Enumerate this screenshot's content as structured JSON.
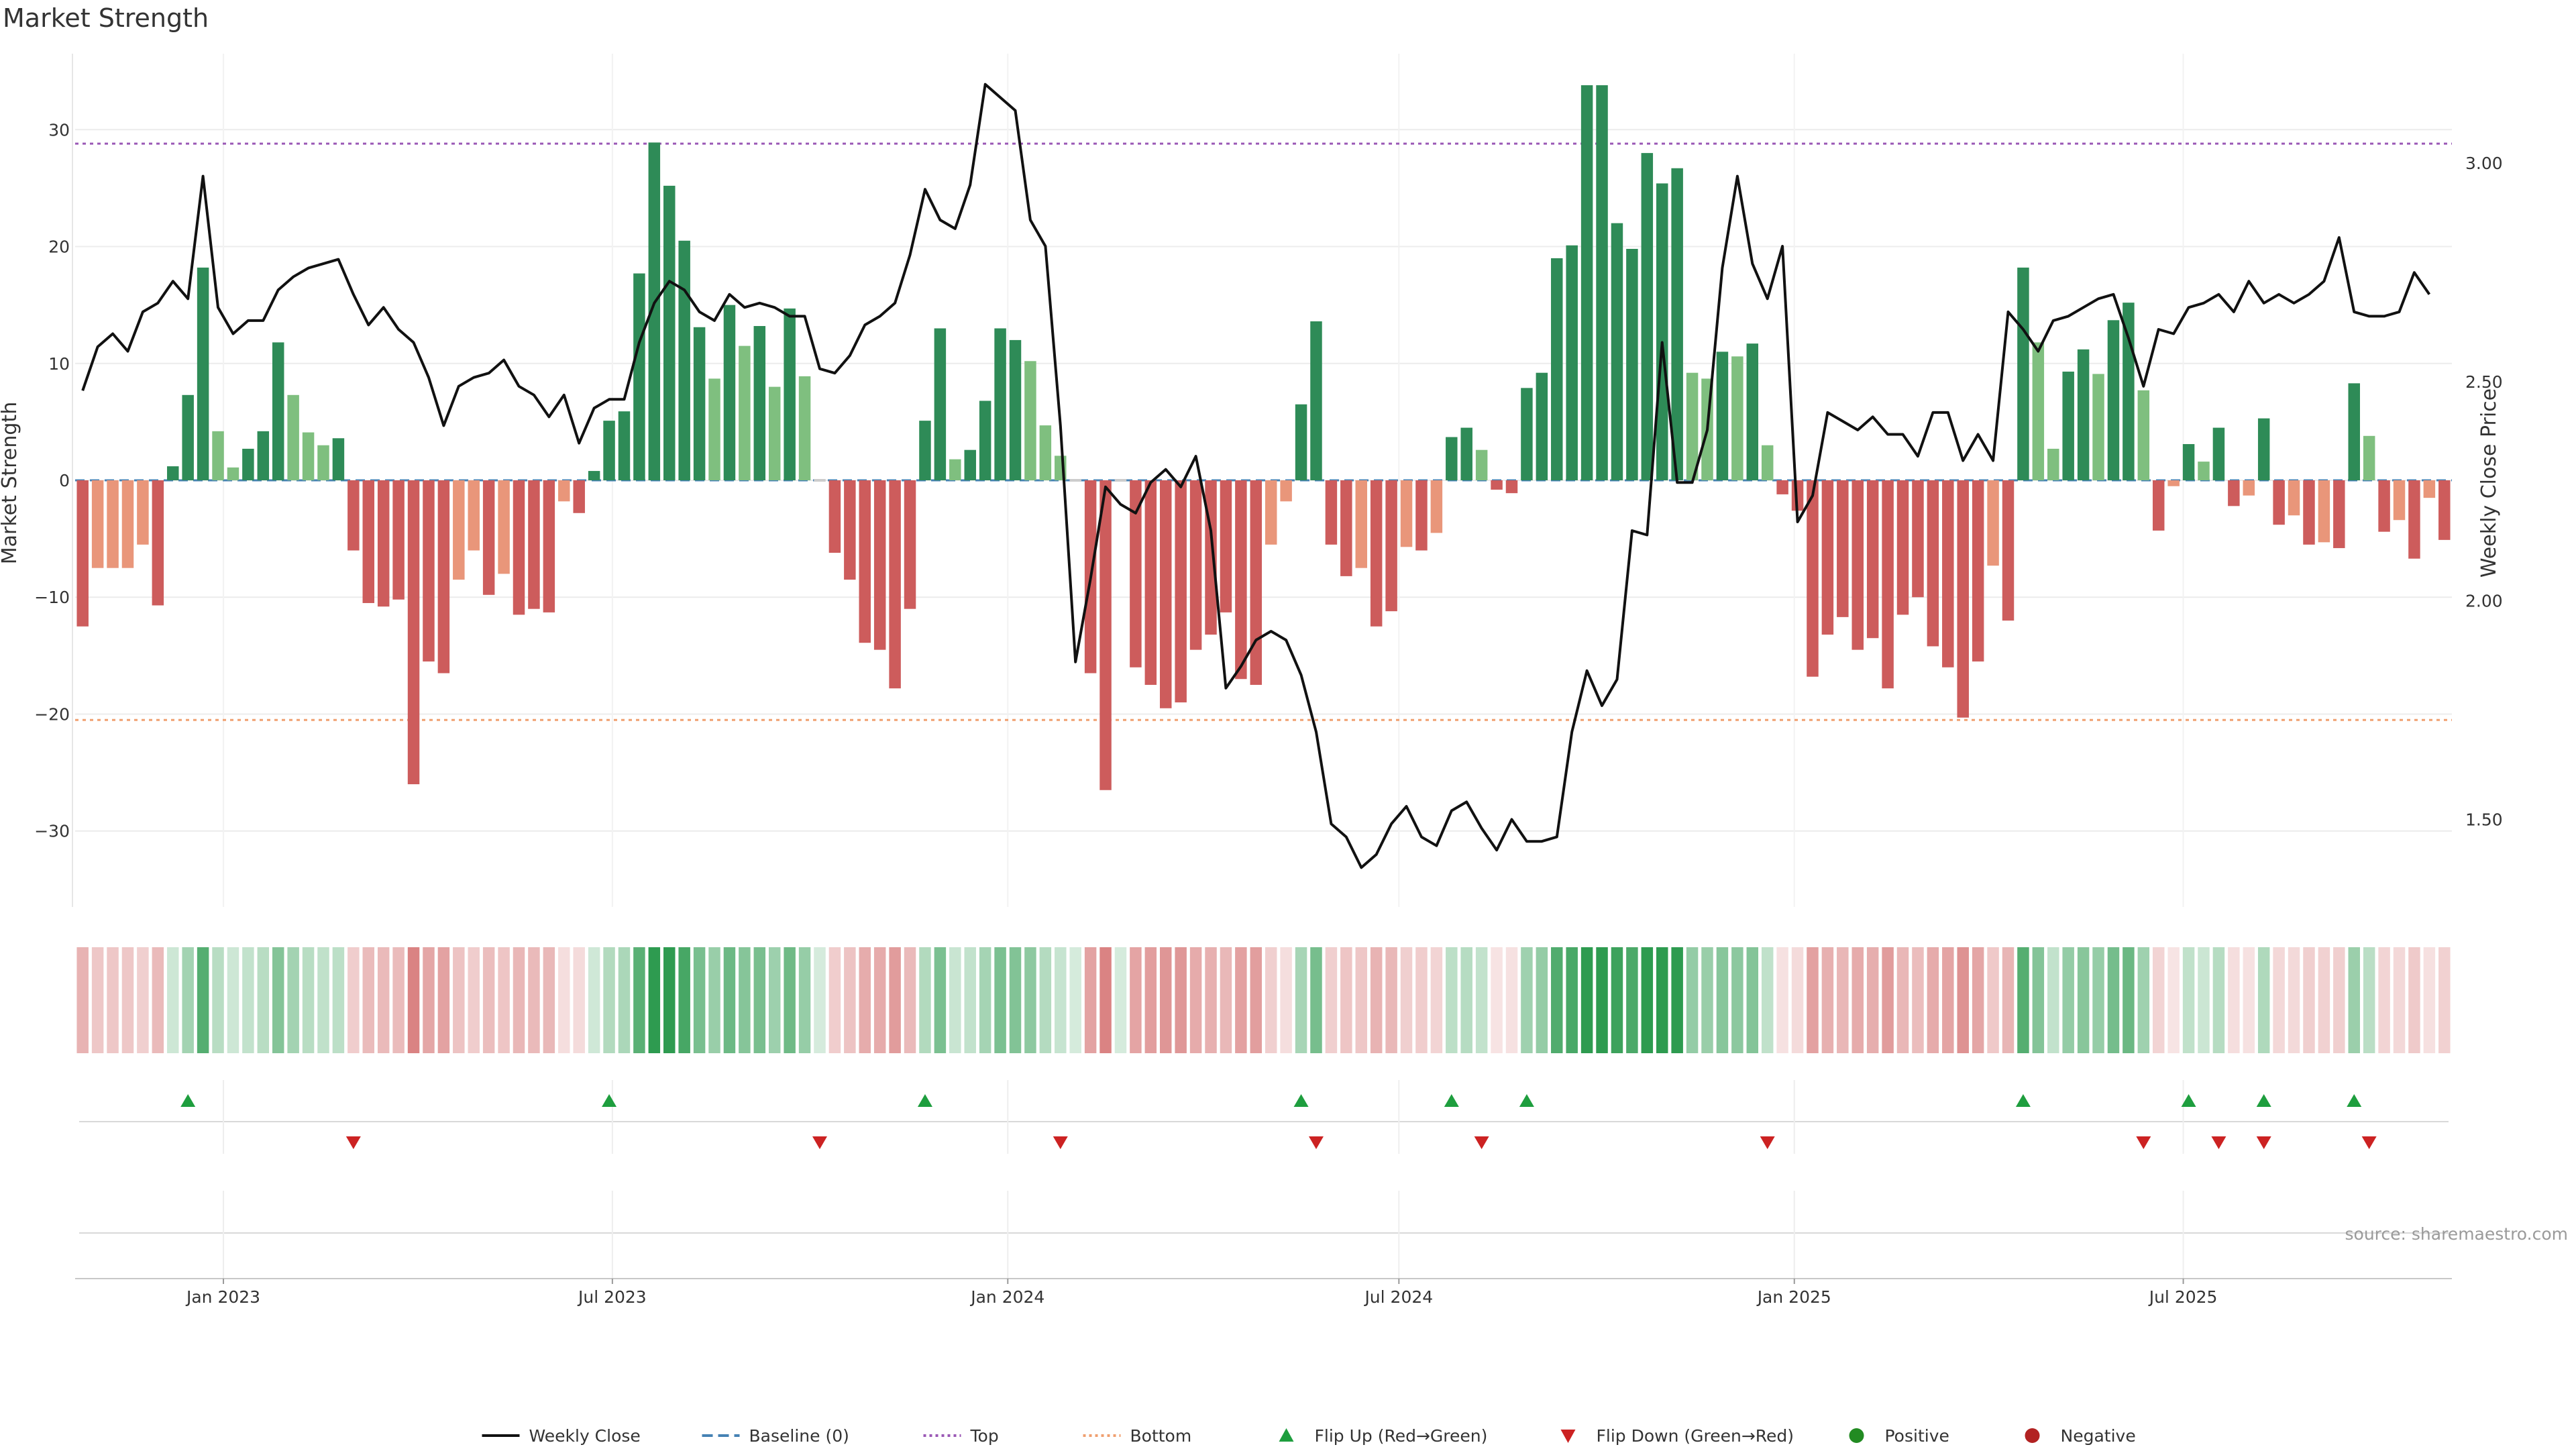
{
  "chart_data": {
    "type": "bar",
    "title": "Market Strength",
    "ylabel": "Market Strength",
    "y2label": "Weekly Close Price",
    "ylim": [
      -36.5,
      36.5
    ],
    "y2lim": [
      1.3,
      3.25
    ],
    "yticks": [
      30,
      20,
      10,
      0,
      -10,
      -20,
      -30
    ],
    "y2ticks": [
      "3.00",
      "2.50",
      "2.00",
      "1.50"
    ],
    "top_line": 28.8,
    "bottom_line": -20.5,
    "x_start": "2022-10-24",
    "x_ticks": [
      {
        "label": "Jan 2023",
        "date": "2023-01-01"
      },
      {
        "label": "Jul 2023",
        "date": "2023-07-01"
      },
      {
        "label": "Jan 2024",
        "date": "2024-01-01"
      },
      {
        "label": "Jul 2024",
        "date": "2024-07-01"
      },
      {
        "label": "Jan 2025",
        "date": "2025-01-01"
      },
      {
        "label": "Jul 2025",
        "date": "2025-07-01"
      }
    ],
    "strength": [
      -12.5,
      -7.5,
      -7.5,
      -7.5,
      -5.5,
      -10.7,
      1.2,
      7.3,
      18.2,
      4.2,
      1.1,
      2.7,
      4.2,
      11.8,
      7.3,
      4.1,
      3.0,
      3.6,
      -6,
      -10.5,
      -10.8,
      -10.2,
      -26,
      -15.5,
      -16.5,
      -8.5,
      -6,
      -9.8,
      -8,
      -11.5,
      -11,
      -11.3,
      -1.8,
      -2.8,
      0.8,
      5.1,
      5.9,
      17.7,
      28.9,
      25.2,
      20.5,
      13.1,
      8.7,
      15.0,
      11.5,
      13.2,
      8.0,
      14.7,
      8.9,
      0,
      -6.2,
      -8.5,
      -13.9,
      -14.5,
      -17.8,
      -11,
      5.1,
      13.0,
      1.8,
      2.6,
      6.8,
      13.0,
      12.0,
      10.2,
      4.7,
      2.1,
      0,
      -16.5,
      -26.5,
      0,
      -16,
      -17.5,
      -19.5,
      -19,
      -14.5,
      -13.2,
      -11.3,
      -17,
      -17.5,
      -5.5,
      -1.8,
      6.5,
      13.6,
      -5.5,
      -8.2,
      -7.5,
      -12.5,
      -11.2,
      -5.7,
      -6.0,
      -4.5,
      3.7,
      4.5,
      2.6,
      -0.8,
      -1.1,
      7.9,
      9.2,
      19.0,
      20.1,
      33.8,
      33.8,
      22.0,
      19.8,
      28.0,
      25.4,
      26.7,
      9.2,
      8.7,
      11.0,
      10.6,
      11.7,
      3.0,
      -1.2,
      -2.6,
      -16.8,
      -13.2,
      -11.7,
      -14.5,
      -13.5,
      -17.8,
      -11.5,
      -10,
      -14.2,
      -16,
      -20.3,
      -15.5,
      -7.3,
      -12,
      18.2,
      11.8,
      2.7,
      9.3,
      11.2,
      9.1,
      13.7,
      15.2,
      7.7,
      -4.3,
      -0.5,
      3.1,
      1.6,
      4.5,
      -2.2,
      -1.3,
      5.3,
      -3.8,
      -3.0,
      -5.5,
      -5.3,
      -5.8,
      8.3,
      3.8,
      -4.4,
      -3.4,
      -6.7,
      -1.5,
      -5.1
    ],
    "weekly_close": [
      2.48,
      2.58,
      2.61,
      2.57,
      2.66,
      2.68,
      2.73,
      2.69,
      2.97,
      2.67,
      2.61,
      2.64,
      2.64,
      2.71,
      2.74,
      2.76,
      2.77,
      2.78,
      2.7,
      2.63,
      2.67,
      2.62,
      2.59,
      2.51,
      2.4,
      2.49,
      2.51,
      2.52,
      2.55,
      2.49,
      2.47,
      2.42,
      2.47,
      2.36,
      2.44,
      2.46,
      2.46,
      2.59,
      2.68,
      2.73,
      2.71,
      2.66,
      2.64,
      2.7,
      2.67,
      2.68,
      2.67,
      2.65,
      2.65,
      2.53,
      2.52,
      2.56,
      2.63,
      2.65,
      2.68,
      2.79,
      2.94,
      2.87,
      2.85,
      2.95,
      3.18,
      3.15,
      3.12,
      2.87,
      2.81,
      2.4,
      1.86,
      2.05,
      2.26,
      2.22,
      2.2,
      2.27,
      2.3,
      2.26,
      2.33,
      2.16,
      1.8,
      1.85,
      1.91,
      1.93,
      1.91,
      1.83,
      1.7,
      1.49,
      1.46,
      1.39,
      1.42,
      1.49,
      1.53,
      1.46,
      1.44,
      1.52,
      1.54,
      1.48,
      1.43,
      1.5,
      1.45,
      1.45,
      1.46,
      1.7,
      1.84,
      1.76,
      1.82,
      2.16,
      2.15,
      2.59,
      2.27,
      2.27,
      2.39,
      2.76,
      2.97,
      2.77,
      2.69,
      2.81,
      2.18,
      2.24,
      2.43,
      2.41,
      2.39,
      2.42,
      2.38,
      2.38,
      2.33,
      2.43,
      2.43,
      2.32,
      2.38,
      2.32,
      2.66,
      2.62,
      2.57,
      2.64,
      2.65,
      2.67,
      2.69,
      2.7,
      2.6,
      2.49,
      2.62,
      2.61,
      2.67,
      2.68,
      2.7,
      2.66,
      2.73,
      2.68,
      2.7,
      2.68,
      2.7,
      2.73,
      2.83,
      2.66,
      2.65,
      2.65,
      2.66,
      2.75,
      2.7
    ],
    "signal_strips": [
      {
        "name": "Flip Up (Red→Green)",
        "direction": "up",
        "weeks": [
          7,
          35,
          56,
          81,
          91,
          96,
          129,
          140,
          145,
          151
        ]
      },
      {
        "name": "Flip Down (Green→Red)",
        "direction": "down",
        "weeks": [
          18,
          49,
          65,
          82,
          93,
          112,
          137,
          142,
          145,
          152
        ]
      }
    ],
    "colors": {
      "strong_positive": "#2e8b57",
      "weak_positive": "#7fbf7f",
      "strong_negative": "#cd5c5c",
      "weak_negative": "#e9967a",
      "price_line": "#111111",
      "top_line": "#9b59b6",
      "bottom_line": "#f0a070",
      "baseline": "#4682b4",
      "flip_up": "#1e9e3e",
      "flip_down": "#cc2222",
      "positive_dot": "#228b22",
      "negative_dot": "#b22222"
    },
    "legend": {
      "placement": "bottom-center",
      "items": [
        {
          "label": "Weekly Close",
          "kind": "line"
        },
        {
          "label": "Baseline (0)",
          "kind": "dashed"
        },
        {
          "label": "Top",
          "kind": "dotted-purple"
        },
        {
          "label": "Bottom",
          "kind": "dotted-orange"
        },
        {
          "label": "Flip Up (Red→Green)",
          "kind": "triangle-up"
        },
        {
          "label": "Flip Down (Green→Red)",
          "kind": "triangle-down"
        },
        {
          "label": "Positive",
          "kind": "dot-green"
        },
        {
          "label": "Negative",
          "kind": "dot-red"
        }
      ]
    },
    "source": "source: sharemaestro.com"
  }
}
